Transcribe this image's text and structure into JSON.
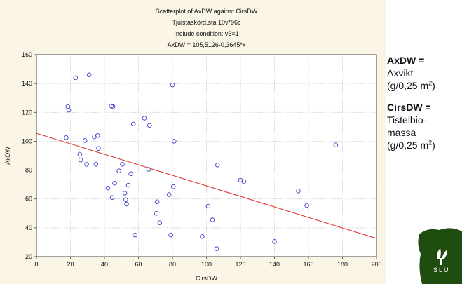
{
  "chart_data": {
    "type": "scatter",
    "title_lines": [
      "Scatterplot of AxDW against CirsDW",
      "Tjulstaskörd.sta 10v*96c",
      "Include condition: v3=1",
      "AxDW = 105,5126-0,3645*x"
    ],
    "xlabel": "CirsDW",
    "ylabel": "AxDW",
    "xlim": [
      0,
      200
    ],
    "ylim": [
      20,
      160
    ],
    "x_ticks": [
      "0",
      "20",
      "40",
      "60",
      "80",
      "100",
      "120",
      "140",
      "160",
      "180",
      "200"
    ],
    "y_ticks": [
      "20",
      "40",
      "60",
      "80",
      "100",
      "120",
      "140",
      "160"
    ],
    "grid": true,
    "regression": {
      "intercept": 105.5126,
      "slope": -0.3645,
      "color": "#e03a3a"
    },
    "marker_color": "#3b3fc6",
    "points": [
      [
        17.5,
        102.5
      ],
      [
        18.5,
        124
      ],
      [
        19,
        121.5
      ],
      [
        23,
        144
      ],
      [
        25.5,
        91
      ],
      [
        26,
        87
      ],
      [
        28.5,
        100.5
      ],
      [
        29.5,
        84
      ],
      [
        31,
        146
      ],
      [
        34,
        103
      ],
      [
        35,
        84
      ],
      [
        36,
        104
      ],
      [
        36.5,
        95
      ],
      [
        42,
        67.5
      ],
      [
        44,
        124.5
      ],
      [
        44.5,
        61
      ],
      [
        45,
        124
      ],
      [
        46,
        71
      ],
      [
        48.5,
        79.5
      ],
      [
        50.5,
        84
      ],
      [
        52,
        64
      ],
      [
        52.5,
        59.5
      ],
      [
        53,
        56.5
      ],
      [
        54,
        69.5
      ],
      [
        55.5,
        77.5
      ],
      [
        57,
        112
      ],
      [
        58,
        35
      ],
      [
        63.5,
        116
      ],
      [
        66,
        80.5
      ],
      [
        66.5,
        111
      ],
      [
        70.5,
        50
      ],
      [
        71,
        58
      ],
      [
        72.5,
        43.5
      ],
      [
        78,
        63
      ],
      [
        79,
        35
      ],
      [
        80,
        139
      ],
      [
        80.5,
        68.5
      ],
      [
        81,
        100
      ],
      [
        97.5,
        34
      ],
      [
        101,
        55
      ],
      [
        103.5,
        45.5
      ],
      [
        106,
        25.5
      ],
      [
        106.5,
        83.5
      ],
      [
        120,
        73
      ],
      [
        122,
        72
      ],
      [
        140,
        30.5
      ],
      [
        154,
        65.5
      ],
      [
        159,
        55.5
      ],
      [
        176,
        97.5
      ]
    ]
  },
  "side_text": {
    "axdw_term": "AxDW =",
    "axdw_lines": [
      "Axvikt",
      "(g/0,25 m",
      "2",
      ")"
    ],
    "cirsdw_term": "CirsDW =",
    "cirsdw_lines": [
      "Tistelbio-",
      "massa",
      "(g/0,25 m",
      "2",
      ")"
    ]
  },
  "logo": {
    "text": "SLU",
    "bg_color": "#1f4d10"
  }
}
